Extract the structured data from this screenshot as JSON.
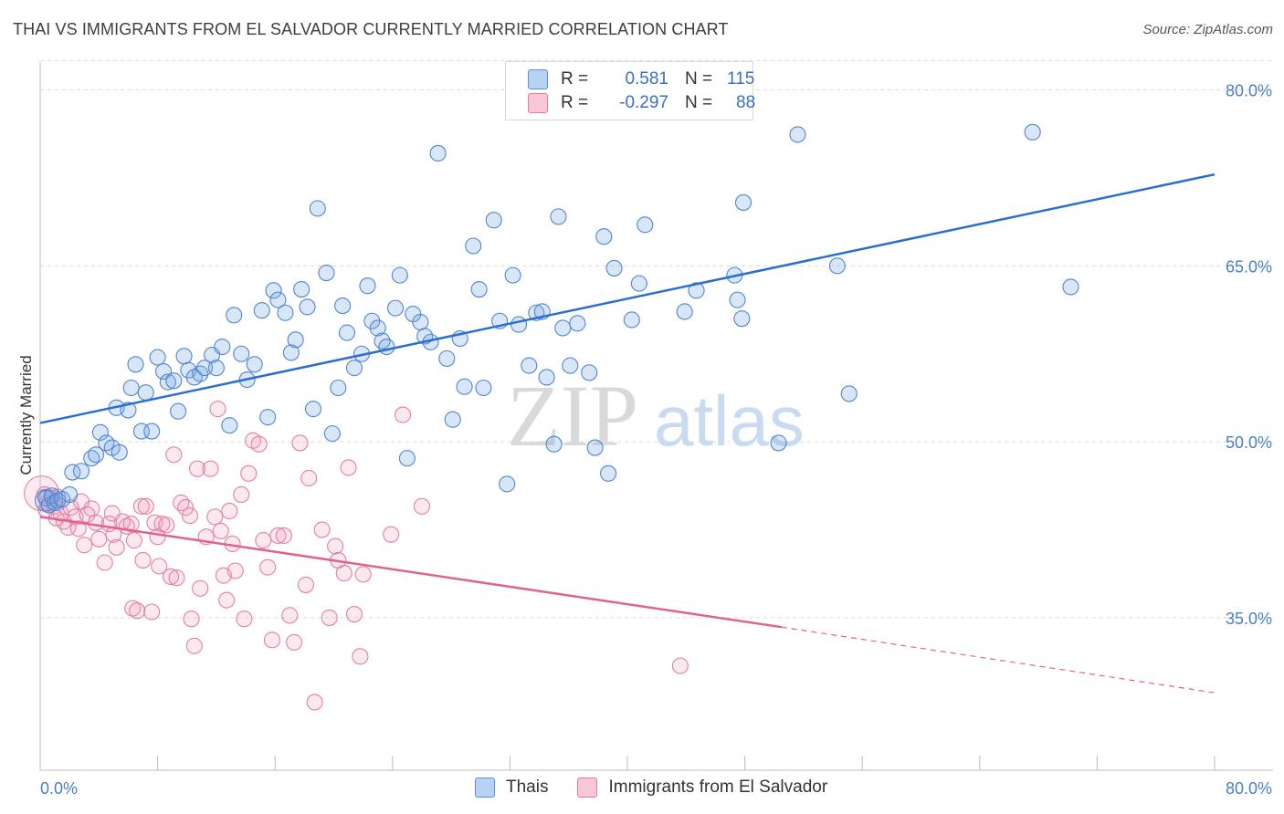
{
  "title": "THAI VS IMMIGRANTS FROM EL SALVADOR CURRENTLY MARRIED CORRELATION CHART",
  "source": "Source: ZipAtlas.com",
  "watermark": {
    "zip": "ZIP",
    "atlas": "atlas"
  },
  "legend": {
    "r_label": "R =",
    "n_label": "N =",
    "series": [
      {
        "name": "Thais",
        "r": "0.581",
        "n": "115",
        "fill": "#aeccf2",
        "stroke": "#5b8fd6"
      },
      {
        "name": "Immigrants from El Salvador",
        "r": "-0.297",
        "n": "88",
        "fill": "#f8c0d2",
        "stroke": "#e8799c"
      }
    ]
  },
  "colors": {
    "blue_point_fill": "rgba(120,165,225,0.28)",
    "blue_point_stroke": "#4f86d2",
    "pink_point_fill": "rgba(240,150,180,0.22)",
    "pink_point_stroke": "#e57fa2",
    "blue_line": "#2a6fcf",
    "pink_line": "#e0628f",
    "grid": "#dcdcdc",
    "tick_text": "#4a7ec9"
  },
  "chart_data": {
    "type": "scatter",
    "title": "THAI VS IMMIGRANTS FROM EL SALVADOR CURRENTLY MARRIED CORRELATION CHART",
    "xlabel": "",
    "ylabel": "Currently Married",
    "xlim": [
      0,
      80
    ],
    "ylim": [
      22,
      83
    ],
    "x_tick_labels": [
      "0.0%",
      "80.0%"
    ],
    "y_ticks": [
      35,
      50,
      65,
      80
    ],
    "y_tick_labels": [
      "35.0%",
      "50.0%",
      "65.0%",
      "80.0%"
    ],
    "grid": true,
    "series": [
      {
        "name": "Thais",
        "trend": {
          "x": [
            0,
            80
          ],
          "y": [
            51.6,
            72.8
          ]
        },
        "points": [
          [
            0.4,
            45.2
          ],
          [
            0.6,
            44.6
          ],
          [
            0.8,
            45.4
          ],
          [
            1.0,
            44.8
          ],
          [
            1.2,
            45.0
          ],
          [
            1.5,
            45.1
          ],
          [
            2.0,
            45.5
          ],
          [
            2.2,
            47.4
          ],
          [
            2.8,
            47.5
          ],
          [
            3.5,
            48.6
          ],
          [
            3.8,
            48.9
          ],
          [
            4.1,
            50.8
          ],
          [
            4.5,
            49.9
          ],
          [
            4.9,
            49.5
          ],
          [
            5.4,
            49.1
          ],
          [
            5.2,
            52.9
          ],
          [
            6.0,
            52.7
          ],
          [
            6.2,
            54.6
          ],
          [
            6.5,
            56.6
          ],
          [
            6.9,
            50.9
          ],
          [
            7.2,
            54.2
          ],
          [
            7.6,
            50.9
          ],
          [
            8.0,
            57.2
          ],
          [
            8.4,
            56.0
          ],
          [
            8.7,
            55.1
          ],
          [
            9.1,
            55.2
          ],
          [
            9.4,
            52.6
          ],
          [
            9.8,
            57.3
          ],
          [
            10.1,
            56.1
          ],
          [
            10.5,
            55.5
          ],
          [
            10.9,
            55.8
          ],
          [
            11.2,
            56.3
          ],
          [
            11.7,
            57.4
          ],
          [
            12.0,
            56.3
          ],
          [
            12.4,
            58.1
          ],
          [
            12.9,
            51.4
          ],
          [
            13.2,
            60.8
          ],
          [
            13.7,
            57.5
          ],
          [
            14.1,
            55.3
          ],
          [
            14.6,
            56.6
          ],
          [
            15.1,
            61.2
          ],
          [
            15.5,
            52.1
          ],
          [
            15.9,
            62.9
          ],
          [
            16.2,
            62.1
          ],
          [
            16.7,
            61.0
          ],
          [
            17.1,
            57.6
          ],
          [
            17.4,
            58.7
          ],
          [
            17.8,
            63.0
          ],
          [
            18.2,
            61.5
          ],
          [
            18.6,
            52.8
          ],
          [
            18.9,
            69.9
          ],
          [
            19.5,
            64.4
          ],
          [
            19.9,
            50.7
          ],
          [
            20.3,
            54.6
          ],
          [
            20.6,
            61.6
          ],
          [
            20.9,
            59.3
          ],
          [
            21.4,
            56.3
          ],
          [
            21.9,
            57.5
          ],
          [
            22.3,
            63.3
          ],
          [
            22.6,
            60.3
          ],
          [
            23.0,
            59.7
          ],
          [
            23.3,
            58.6
          ],
          [
            23.6,
            58.1
          ],
          [
            24.2,
            61.4
          ],
          [
            24.5,
            64.2
          ],
          [
            25.0,
            48.6
          ],
          [
            25.4,
            60.9
          ],
          [
            25.9,
            60.2
          ],
          [
            26.2,
            59.0
          ],
          [
            26.6,
            58.5
          ],
          [
            27.1,
            74.6
          ],
          [
            27.7,
            57.1
          ],
          [
            28.1,
            51.9
          ],
          [
            28.6,
            58.8
          ],
          [
            28.9,
            54.7
          ],
          [
            29.5,
            66.7
          ],
          [
            29.9,
            63.0
          ],
          [
            30.2,
            54.6
          ],
          [
            30.9,
            68.9
          ],
          [
            31.3,
            60.3
          ],
          [
            31.8,
            46.4
          ],
          [
            32.2,
            64.2
          ],
          [
            32.6,
            60.0
          ],
          [
            33.3,
            56.5
          ],
          [
            33.8,
            61.0
          ],
          [
            34.2,
            61.1
          ],
          [
            34.5,
            55.5
          ],
          [
            35.0,
            49.8
          ],
          [
            35.3,
            69.2
          ],
          [
            35.6,
            59.7
          ],
          [
            36.1,
            56.5
          ],
          [
            36.6,
            60.1
          ],
          [
            37.4,
            55.9
          ],
          [
            37.8,
            49.5
          ],
          [
            38.4,
            67.5
          ],
          [
            38.7,
            47.3
          ],
          [
            39.1,
            64.8
          ],
          [
            40.3,
            60.4
          ],
          [
            40.8,
            63.5
          ],
          [
            41.2,
            68.5
          ],
          [
            43.9,
            61.1
          ],
          [
            44.7,
            62.9
          ],
          [
            47.3,
            64.2
          ],
          [
            47.5,
            62.1
          ],
          [
            47.8,
            60.5
          ],
          [
            47.9,
            70.4
          ],
          [
            50.3,
            49.9
          ],
          [
            51.6,
            76.2
          ],
          [
            54.3,
            65.0
          ],
          [
            55.1,
            54.1
          ],
          [
            67.6,
            76.4
          ],
          [
            70.2,
            63.2
          ]
        ]
      },
      {
        "name": "Immigrants from El Salvador",
        "trend": {
          "x": [
            0,
            50.5
          ],
          "y": [
            43.6,
            34.2
          ],
          "dashed_to": {
            "x": 80,
            "y": 28.6
          }
        },
        "points": [
          [
            0.3,
            45.5
          ],
          [
            0.5,
            44.8
          ],
          [
            0.8,
            45.2
          ],
          [
            1.0,
            44.5
          ],
          [
            1.2,
            45.3
          ],
          [
            1.4,
            43.9
          ],
          [
            1.6,
            43.2
          ],
          [
            1.9,
            42.7
          ],
          [
            2.1,
            44.4
          ],
          [
            2.4,
            43.6
          ],
          [
            2.8,
            44.9
          ],
          [
            3.0,
            41.2
          ],
          [
            3.2,
            43.8
          ],
          [
            3.5,
            44.3
          ],
          [
            3.8,
            43.1
          ],
          [
            4.0,
            41.7
          ],
          [
            4.4,
            39.7
          ],
          [
            4.7,
            43.0
          ],
          [
            5.0,
            42.1
          ],
          [
            5.2,
            41.0
          ],
          [
            5.6,
            43.2
          ],
          [
            5.9,
            42.8
          ],
          [
            6.2,
            43.0
          ],
          [
            6.3,
            35.8
          ],
          [
            6.6,
            35.6
          ],
          [
            6.9,
            44.5
          ],
          [
            7.0,
            39.9
          ],
          [
            7.2,
            44.5
          ],
          [
            7.6,
            35.5
          ],
          [
            7.8,
            43.1
          ],
          [
            8.0,
            41.9
          ],
          [
            8.3,
            43.0
          ],
          [
            8.6,
            42.9
          ],
          [
            8.9,
            38.5
          ],
          [
            9.1,
            48.9
          ],
          [
            9.3,
            38.4
          ],
          [
            9.6,
            44.8
          ],
          [
            9.9,
            44.4
          ],
          [
            10.3,
            34.9
          ],
          [
            10.5,
            32.6
          ],
          [
            10.7,
            47.7
          ],
          [
            10.9,
            37.5
          ],
          [
            11.3,
            41.9
          ],
          [
            11.6,
            47.7
          ],
          [
            11.9,
            43.6
          ],
          [
            12.1,
            52.8
          ],
          [
            12.3,
            42.4
          ],
          [
            12.5,
            38.6
          ],
          [
            12.7,
            36.5
          ],
          [
            13.1,
            41.3
          ],
          [
            13.3,
            39.0
          ],
          [
            13.7,
            45.5
          ],
          [
            13.9,
            34.9
          ],
          [
            14.2,
            47.3
          ],
          [
            14.5,
            50.1
          ],
          [
            14.9,
            49.8
          ],
          [
            15.2,
            41.6
          ],
          [
            15.5,
            39.3
          ],
          [
            15.8,
            33.1
          ],
          [
            16.2,
            42.0
          ],
          [
            16.6,
            42.0
          ],
          [
            17.0,
            35.2
          ],
          [
            17.3,
            32.9
          ],
          [
            17.7,
            49.9
          ],
          [
            18.1,
            37.8
          ],
          [
            18.3,
            46.9
          ],
          [
            18.7,
            27.8
          ],
          [
            19.2,
            42.5
          ],
          [
            19.7,
            35.0
          ],
          [
            20.1,
            41.1
          ],
          [
            20.3,
            39.9
          ],
          [
            20.7,
            38.8
          ],
          [
            21.0,
            47.8
          ],
          [
            21.4,
            35.3
          ],
          [
            21.8,
            31.7
          ],
          [
            22.0,
            38.7
          ],
          [
            23.9,
            42.1
          ],
          [
            24.7,
            52.3
          ],
          [
            26.0,
            44.5
          ],
          [
            43.6,
            30.9
          ],
          [
            0.4,
            44.2
          ],
          [
            1.1,
            43.5
          ],
          [
            2.6,
            42.6
          ],
          [
            4.9,
            43.9
          ],
          [
            6.4,
            41.6
          ],
          [
            8.1,
            39.4
          ],
          [
            10.2,
            43.7
          ],
          [
            12.9,
            44.1
          ]
        ]
      }
    ]
  }
}
